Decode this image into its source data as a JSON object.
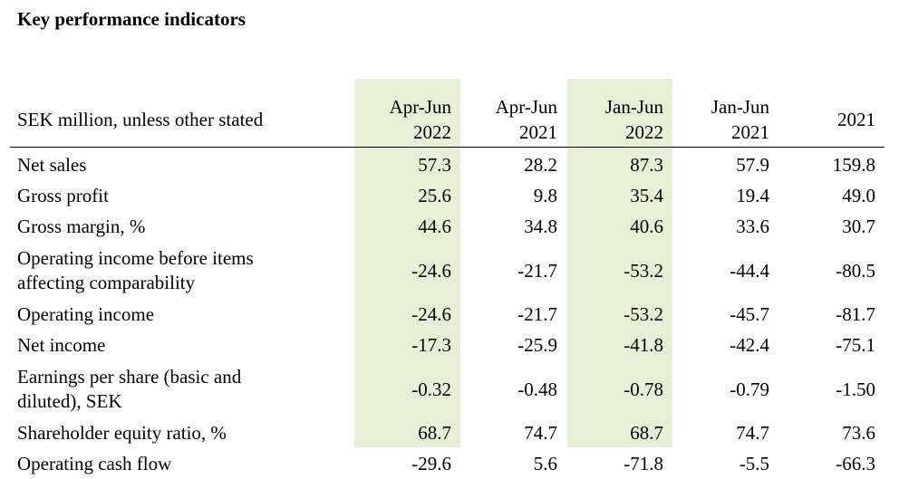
{
  "title": "Key performance indicators",
  "header": {
    "label": "SEK million, unless other stated",
    "columns": [
      {
        "line1": "Apr-Jun",
        "line2": "2022",
        "highlight": true
      },
      {
        "line1": "Apr-Jun",
        "line2": "2021",
        "highlight": false
      },
      {
        "line1": "Jan-Jun",
        "line2": "2022",
        "highlight": true
      },
      {
        "line1": "Jan-Jun",
        "line2": "2021",
        "highlight": false
      },
      {
        "line1": "",
        "line2": "2021",
        "highlight": false
      }
    ]
  },
  "rows": [
    {
      "label": "Net sales",
      "values": [
        "57.3",
        "28.2",
        "87.3",
        "57.9",
        "159.8"
      ]
    },
    {
      "label": "Gross profit",
      "values": [
        "25.6",
        "9.8",
        "35.4",
        "19.4",
        "49.0"
      ]
    },
    {
      "label": "Gross margin, %",
      "values": [
        "44.6",
        "34.8",
        "40.6",
        "33.6",
        "30.7"
      ]
    },
    {
      "label_line1": "Operating income before items",
      "label_line2": "affecting comparability",
      "values": [
        "-24.6",
        "-21.7",
        "-53.2",
        "-44.4",
        "-80.5"
      ]
    },
    {
      "label": "Operating income",
      "values": [
        "-24.6",
        "-21.7",
        "-53.2",
        "-45.7",
        "-81.7"
      ]
    },
    {
      "label": "Net income",
      "values": [
        "-17.3",
        "-25.9",
        "-41.8",
        "-42.4",
        "-75.1"
      ]
    },
    {
      "label_line1": "Earnings per share (basic and",
      "label_line2": "diluted), SEK",
      "values": [
        "-0.32",
        "-0.48",
        "-0.78",
        "-0.79",
        "-1.50"
      ]
    },
    {
      "label": "Shareholder equity ratio, %",
      "values": [
        "68.7",
        "74.7",
        "68.7",
        "74.7",
        "73.6"
      ]
    },
    {
      "label": "Operating cash flow",
      "values": [
        "-29.6",
        "5.6",
        "-71.8",
        "-5.5",
        "-66.3"
      ]
    }
  ],
  "colors": {
    "highlight": "#e6f0d6"
  }
}
